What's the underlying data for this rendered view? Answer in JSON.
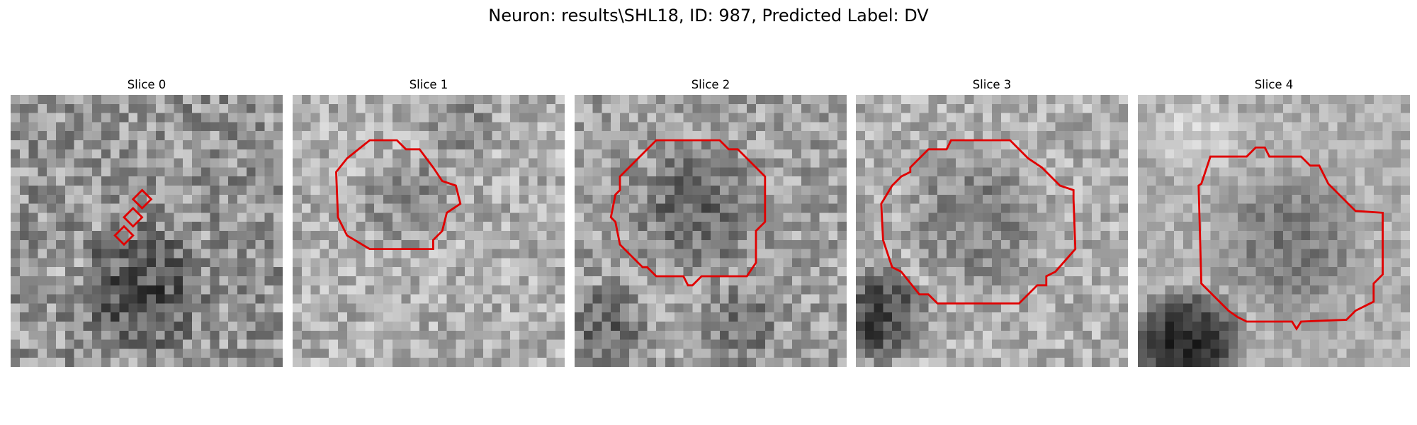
{
  "figure": {
    "title": "Neuron: results\\SHL18, ID: 987, Predicted Label: DV",
    "contour_color": "#e00000",
    "colormap": "gray",
    "panels": [
      {
        "title": "Slice 0",
        "image_name": "microscopy-slice-0",
        "contour_name": "roi-markers-slice-0"
      },
      {
        "title": "Slice 1",
        "image_name": "microscopy-slice-1",
        "contour_name": "roi-contour-slice-1"
      },
      {
        "title": "Slice 2",
        "image_name": "microscopy-slice-2",
        "contour_name": "roi-contour-slice-2"
      },
      {
        "title": "Slice 3",
        "image_name": "microscopy-slice-3",
        "contour_name": "roi-contour-slice-3"
      },
      {
        "title": "Slice 4",
        "image_name": "microscopy-slice-4",
        "contour_name": "roi-contour-slice-4"
      }
    ]
  }
}
